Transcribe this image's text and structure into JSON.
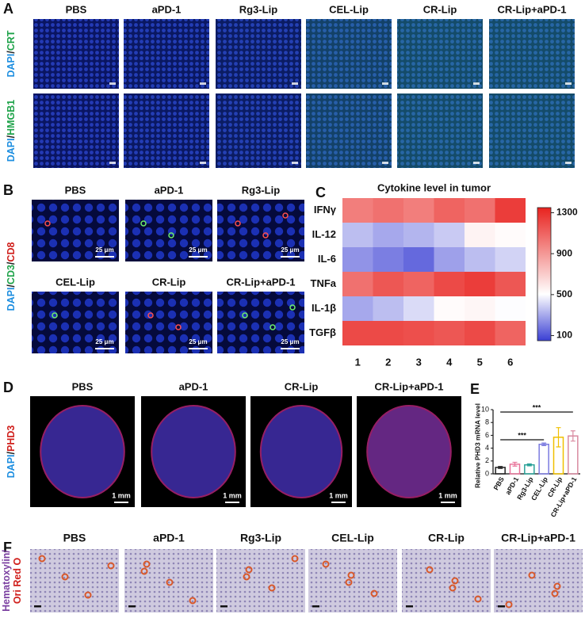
{
  "panels": {
    "A": {
      "label": "A",
      "columns": [
        "PBS",
        "aPD-1",
        "Rg3-Lip",
        "CEL-Lip",
        "CR-Lip",
        "CR-Lip+aPD-1"
      ],
      "rows": [
        [
          {
            "text": "DAPI",
            "color": "#1f8fe0"
          },
          {
            "text": "/",
            "color": "#222222"
          },
          {
            "text": "CRT",
            "color": "#1fa34a"
          }
        ],
        [
          {
            "text": "DAPI",
            "color": "#1f8fe0"
          },
          {
            "text": "/",
            "color": "#222222"
          },
          {
            "text": "HMGB1",
            "color": "#1fa34a"
          }
        ]
      ]
    },
    "B": {
      "label": "B",
      "columns": [
        "PBS",
        "aPD-1",
        "Rg3-Lip",
        "CEL-Lip",
        "CR-Lip",
        "CR-Lip+aPD-1"
      ],
      "row": [
        {
          "text": "DAPI",
          "color": "#1f8fe0"
        },
        {
          "text": "/",
          "color": "#222222"
        },
        {
          "text": "CD3",
          "color": "#1fa34a"
        },
        {
          "text": "/",
          "color": "#222222"
        },
        {
          "text": "CD8",
          "color": "#d0201c"
        }
      ],
      "scale_bar": "25 μm"
    },
    "C": {
      "label": "C"
    },
    "D": {
      "label": "D",
      "columns": [
        "PBS",
        "aPD-1",
        "CR-Lip",
        "CR-Lip+aPD-1"
      ],
      "row": [
        {
          "text": "DAPI",
          "color": "#1f8fe0"
        },
        {
          "text": "/",
          "color": "#222222"
        },
        {
          "text": "PHD3",
          "color": "#d0201c"
        }
      ],
      "scale_bar": "1 mm"
    },
    "E": {
      "label": "E"
    },
    "F": {
      "label": "F",
      "columns": [
        "PBS",
        "aPD-1",
        "Rg3-Lip",
        "CEL-Lip",
        "CR-Lip",
        "CR-Lip+aPD-1"
      ],
      "row_lines": [
        [
          {
            "text": "Hematoxylin/",
            "color": "#7a3fa0"
          }
        ],
        [
          {
            "text": "Ori Red O",
            "color": "#d0201c"
          }
        ]
      ]
    }
  },
  "chart_data": [
    {
      "type": "heatmap",
      "title": "Cytokine level in tumor",
      "x": [
        "1",
        "2",
        "3",
        "4",
        "5",
        "6"
      ],
      "y": [
        "IFNγ",
        "IL-12",
        "IL-6",
        "TNFa",
        "IL-1β",
        "TGFβ"
      ],
      "values": [
        [
          1000,
          1050,
          1000,
          1100,
          1050,
          1250
        ],
        [
          350,
          300,
          330,
          380,
          550,
          520
        ],
        [
          250,
          200,
          150,
          280,
          350,
          400
        ],
        [
          1050,
          1150,
          1100,
          1200,
          1250,
          1150
        ],
        [
          300,
          350,
          420,
          520,
          540,
          500
        ],
        [
          1200,
          1200,
          1180,
          1150,
          1200,
          1100
        ]
      ],
      "zlim": [
        50,
        1350
      ],
      "zticks": [
        100,
        500,
        900,
        1300
      ],
      "colormap": [
        "#3a3fd4",
        "#ffffff",
        "#e8231f"
      ],
      "colormap_positions": [
        0,
        0.35,
        1
      ]
    },
    {
      "type": "bar",
      "ylabel": "Relative PHD3 mRNA level",
      "categories": [
        "PBS",
        "aPD-1",
        "Rg3-Lip",
        "CEL-Lip",
        "CR-Lip",
        "CR-Lip+aPD-1"
      ],
      "values": [
        1.0,
        1.5,
        1.4,
        4.6,
        5.7,
        5.9
      ],
      "errors": [
        0.15,
        0.3,
        0.15,
        0.2,
        1.5,
        0.8
      ],
      "colors": [
        "#222222",
        "#e8749a",
        "#2aa198",
        "#7b7be0",
        "#f0c000",
        "#d98aa0"
      ],
      "ylim": [
        0,
        10
      ],
      "yticks": [
        0,
        2,
        4,
        6,
        8,
        10
      ],
      "annotations": [
        "***",
        "***"
      ]
    }
  ]
}
